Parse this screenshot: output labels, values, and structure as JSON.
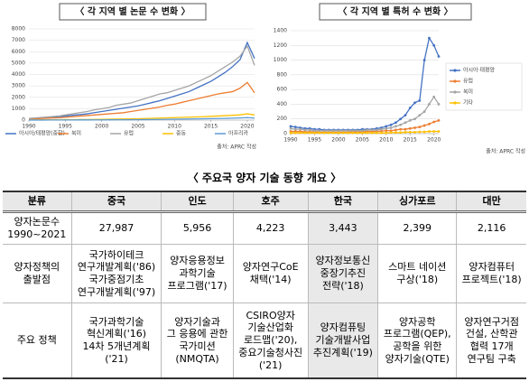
{
  "chart_data": [
    {
      "type": "line",
      "title": "〈 각 지역 별 논문 수 변화 〉",
      "source": "출처: APRC 작성",
      "legend": "bottom",
      "markers": false,
      "x": [
        1990,
        1991,
        1992,
        1993,
        1994,
        1995,
        1996,
        1997,
        1998,
        1999,
        2000,
        2001,
        2002,
        2003,
        2004,
        2005,
        2006,
        2007,
        2008,
        2009,
        2010,
        2011,
        2012,
        2013,
        2014,
        2015,
        2016,
        2017,
        2018,
        2019,
        2020,
        2021
      ],
      "xlim": [
        1990,
        2021
      ],
      "xticks": [
        1990,
        1995,
        2000,
        2005,
        2010,
        2015,
        2020
      ],
      "ylim": [
        0,
        8000
      ],
      "yticks": [
        0,
        1000,
        2000,
        3000,
        4000,
        5000,
        6000,
        7000,
        8000
      ],
      "series": [
        {
          "name": "아시아/태평양(중합)",
          "color": "#4472c4",
          "values": [
            100,
            150,
            200,
            250,
            300,
            350,
            420,
            480,
            550,
            650,
            750,
            850,
            950,
            1050,
            1150,
            1250,
            1400,
            1550,
            1700,
            1900,
            2100,
            2300,
            2500,
            2800,
            3100,
            3400,
            3800,
            4200,
            4700,
            5300,
            6800,
            5400
          ]
        },
        {
          "name": "북미",
          "color": "#ed7d31",
          "values": [
            100,
            120,
            150,
            180,
            200,
            250,
            300,
            350,
            400,
            450,
            500,
            550,
            600,
            650,
            750,
            850,
            950,
            1050,
            1150,
            1300,
            1400,
            1550,
            1700,
            1850,
            2000,
            2150,
            2300,
            2400,
            2500,
            2800,
            3300,
            2400
          ]
        },
        {
          "name": "유럽",
          "color": "#a5a5a5",
          "values": [
            150,
            200,
            250,
            300,
            350,
            450,
            550,
            650,
            750,
            900,
            1000,
            1100,
            1300,
            1400,
            1500,
            1700,
            1900,
            2100,
            2300,
            2400,
            2600,
            2800,
            3000,
            3300,
            3600,
            3900,
            4300,
            4700,
            5100,
            5600,
            6500,
            4800
          ]
        },
        {
          "name": "중동",
          "color": "#ffc000",
          "values": [
            20,
            20,
            25,
            30,
            30,
            35,
            40,
            45,
            50,
            60,
            70,
            80,
            90,
            100,
            110,
            120,
            140,
            160,
            180,
            200,
            220,
            240,
            260,
            280,
            300,
            330,
            360,
            390,
            420,
            460,
            550,
            450
          ]
        },
        {
          "name": "아프리카",
          "color": "#5b9bd5",
          "values": [
            5,
            5,
            5,
            10,
            10,
            10,
            10,
            15,
            15,
            20,
            20,
            25,
            30,
            30,
            35,
            40,
            45,
            50,
            60,
            70,
            80,
            90,
            100,
            110,
            120,
            130,
            140,
            150,
            170,
            190,
            220,
            180
          ]
        }
      ]
    },
    {
      "type": "line",
      "title": "〈 각 지역 별 특허 수 변화 〉",
      "source": "출처: APRC 작성",
      "legend": "right",
      "markers": true,
      "x": [
        1990,
        1991,
        1992,
        1993,
        1994,
        1995,
        1996,
        1997,
        1998,
        1999,
        2000,
        2001,
        2002,
        2003,
        2004,
        2005,
        2006,
        2007,
        2008,
        2009,
        2010,
        2011,
        2012,
        2013,
        2014,
        2015,
        2016,
        2017,
        2018,
        2019,
        2020,
        2021
      ],
      "xlim": [
        1990,
        2021
      ],
      "xticks": [
        1990,
        1995,
        2000,
        2005,
        2010,
        2015,
        2020
      ],
      "ylim": [
        0,
        1400
      ],
      "yticks": [
        0,
        200,
        400,
        600,
        800,
        1000,
        1200,
        1400
      ],
      "series": [
        {
          "name": "아시아·태평양",
          "color": "#4472c4",
          "values": [
            100,
            90,
            80,
            70,
            70,
            60,
            60,
            50,
            50,
            50,
            50,
            50,
            50,
            50,
            50,
            60,
            60,
            60,
            70,
            80,
            100,
            120,
            150,
            200,
            250,
            350,
            420,
            450,
            1000,
            1300,
            1200,
            1050
          ]
        },
        {
          "name": "유럽",
          "color": "#ed7d31",
          "values": [
            30,
            30,
            30,
            25,
            25,
            25,
            20,
            20,
            20,
            20,
            20,
            20,
            20,
            25,
            25,
            25,
            30,
            30,
            30,
            35,
            40,
            40,
            50,
            60,
            60,
            70,
            80,
            90,
            110,
            130,
            160,
            180
          ]
        },
        {
          "name": "북미",
          "color": "#a5a5a5",
          "values": [
            70,
            60,
            60,
            50,
            50,
            40,
            40,
            40,
            40,
            40,
            40,
            40,
            40,
            40,
            40,
            40,
            50,
            50,
            50,
            60,
            70,
            80,
            100,
            120,
            150,
            180,
            200,
            250,
            300,
            400,
            500,
            400
          ]
        },
        {
          "name": "기타",
          "color": "#ffc000",
          "values": [
            10,
            10,
            10,
            10,
            10,
            10,
            10,
            10,
            10,
            10,
            10,
            10,
            10,
            10,
            10,
            10,
            10,
            10,
            10,
            10,
            10,
            15,
            15,
            15,
            20,
            20,
            20,
            25,
            25,
            30,
            30,
            30
          ]
        }
      ]
    }
  ],
  "heading": "〈 주요국 양자 기술 동향 개요 〉",
  "table": {
    "header": [
      "분류",
      "중국",
      "인도",
      "호주",
      "한국",
      "싱가포르",
      "대만"
    ],
    "rows": [
      [
        "양자논문수\n1990~2021",
        "27,987",
        "5,956",
        "4,223",
        "3,443",
        "2,399",
        "2,116"
      ],
      [
        "양자정책의\n출발점",
        "국가하이테크\n연구개발계획('86)\n국가중점기초\n연구개발계획('97)",
        "양자응용정보\n과학기술\n프로그램('17)",
        "양자연구CoE\n채택('14)",
        "양자정보통신\n중장기추진\n전략('18)",
        "스마트 네이션\n구상('18)",
        "양자컴퓨터\n프로젝트('18)"
      ],
      [
        "주요 정책",
        "국가과학기술\n혁신계획('16)\n14차 5개년계획\n('21)",
        "양자기술과\n그 응용에 관한\n국가미션\n(NMQTA)",
        "CSIRO양자\n기술산업화\n로드맵('20),\n중요기술청사진\n('21)",
        "양자컴퓨팅\n기술개발사업\n추진계획('19)",
        "양자공학\n프로그램(QEP),\n공학을 위한\n양자기술(QTE)",
        "양자연구거점\n건설, 산학관\n협력 17개\n연구팀 구축"
      ]
    ]
  }
}
